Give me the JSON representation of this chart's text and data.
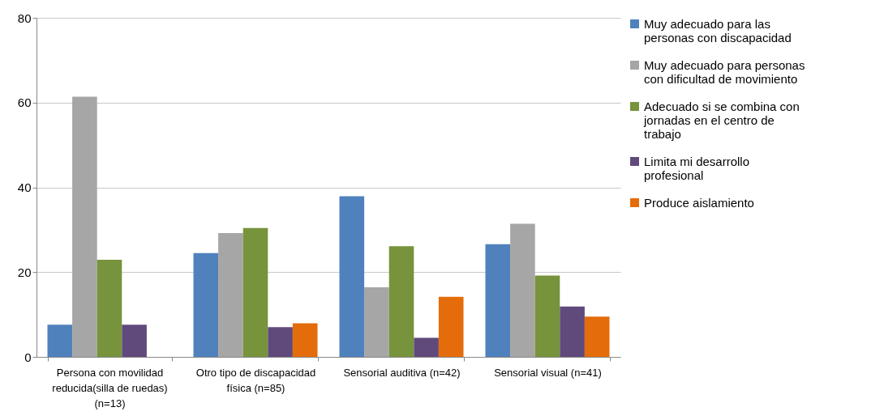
{
  "chart_data": {
    "type": "bar",
    "categories": [
      "Persona con movilidad reducida(silla de ruedas) (n=13)",
      "Otro tipo de discapacidad física (n=85)",
      "Sensorial auditiva (n=42)",
      "Sensorial visual (n=41)"
    ],
    "series": [
      {
        "name": "Muy adecuado para las personas con discapacidad",
        "color": "#4f81bd",
        "values": [
          7.6,
          24.5,
          37.9,
          26.6
        ]
      },
      {
        "name": "Muy adecuado para personas con dificultad de movimiento",
        "color": "#a6a6a6",
        "values": [
          61.4,
          29.2,
          16.4,
          31.4
        ]
      },
      {
        "name": "Adecuado si se combina con jornadas en el centro de trabajo",
        "color": "#77933c",
        "values": [
          22.9,
          30.4,
          26.1,
          19.2
        ]
      },
      {
        "name": "Limita mi desarrollo profesional",
        "color": "#604a7b",
        "values": [
          7.6,
          7.0,
          4.5,
          11.9
        ]
      },
      {
        "name": "Produce aislamiento",
        "color": "#e46c0a",
        "values": [
          null,
          7.9,
          14.2,
          9.5
        ]
      }
    ],
    "ylim": [
      0,
      80
    ],
    "yticks": [
      0,
      20,
      40,
      60,
      80
    ],
    "grid": "y",
    "legend": "right"
  }
}
